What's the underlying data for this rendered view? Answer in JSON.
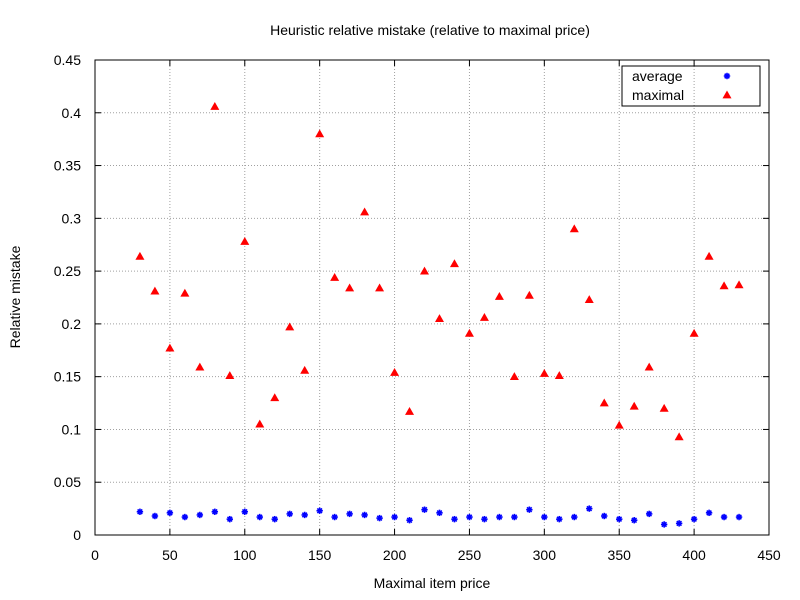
{
  "chart_data": {
    "type": "scatter",
    "title": "Heuristic relative mistake (relative to maximal price)",
    "xlabel": "Maximal item price",
    "ylabel": "Relative mistake",
    "xlim": [
      0,
      450
    ],
    "ylim": [
      0,
      0.45
    ],
    "xticks": [
      0,
      50,
      100,
      150,
      200,
      250,
      300,
      350,
      400,
      450
    ],
    "yticks": [
      0,
      0.05,
      0.1,
      0.15,
      0.2,
      0.25,
      0.3,
      0.35,
      0.4,
      0.45
    ],
    "grid": true,
    "legend_position": "top-right",
    "x": [
      30,
      40,
      50,
      60,
      70,
      80,
      90,
      100,
      110,
      120,
      130,
      140,
      150,
      160,
      170,
      180,
      190,
      200,
      210,
      220,
      230,
      240,
      250,
      260,
      270,
      280,
      290,
      300,
      310,
      320,
      330,
      340,
      350,
      360,
      370,
      380,
      390,
      400,
      410,
      420,
      430
    ],
    "series": [
      {
        "name": "average",
        "color": "#0000ff",
        "marker": "star",
        "values": [
          0.022,
          0.018,
          0.021,
          0.017,
          0.019,
          0.022,
          0.015,
          0.022,
          0.017,
          0.015,
          0.02,
          0.019,
          0.023,
          0.017,
          0.02,
          0.019,
          0.016,
          0.017,
          0.014,
          0.024,
          0.021,
          0.015,
          0.017,
          0.015,
          0.017,
          0.017,
          0.024,
          0.017,
          0.015,
          0.017,
          0.025,
          0.018,
          0.015,
          0.014,
          0.02,
          0.01,
          0.011,
          0.015,
          0.021,
          0.017,
          0.017
        ]
      },
      {
        "name": "maximal",
        "color": "#ff0000",
        "marker": "triangle",
        "values": [
          0.264,
          0.231,
          0.177,
          0.229,
          0.159,
          0.406,
          0.151,
          0.278,
          0.105,
          0.13,
          0.197,
          0.156,
          0.38,
          0.244,
          0.234,
          0.306,
          0.234,
          0.154,
          0.117,
          0.25,
          0.205,
          0.257,
          0.191,
          0.206,
          0.226,
          0.15,
          0.227,
          0.153,
          0.151,
          0.29,
          0.223,
          0.125,
          0.104,
          0.122,
          0.159,
          0.12,
          0.093,
          0.191,
          0.264,
          0.236,
          0.237
        ]
      }
    ]
  }
}
